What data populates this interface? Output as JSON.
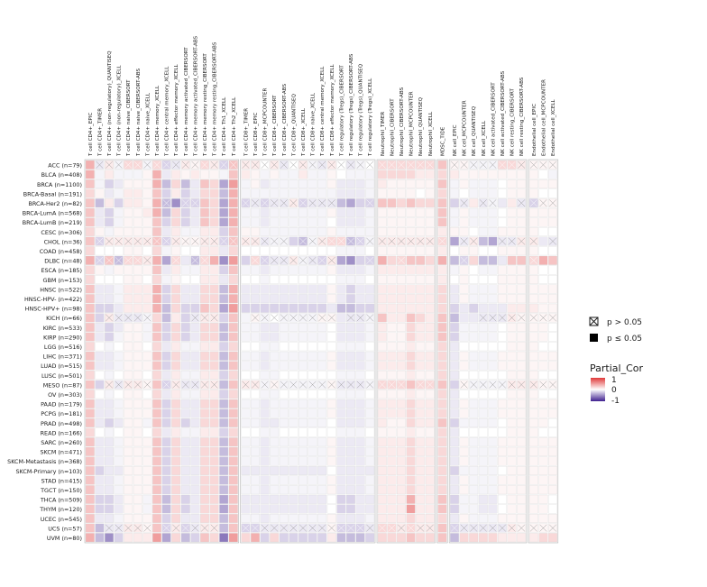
{
  "chart_data": {
    "type": "heatmap",
    "title": "",
    "legend_title": "Partial_Cor",
    "color_scale": {
      "min": -1,
      "max": 1,
      "low_color": "#3f1f8f",
      "mid_color": "#ffffff",
      "high_color": "#e03a3a",
      "ticks": [
        "1",
        "0",
        "-1"
      ]
    },
    "significance_legend": [
      {
        "symbol": "crossed-box",
        "label": "p > 0.05"
      },
      {
        "symbol": "filled-box",
        "label": "p ≤ 0.05"
      }
    ],
    "column_groups": [
      {
        "name": "T cell CD4+",
        "columns": [
          "T cell CD4+_EPIC",
          "T cell CD4+_TIMER",
          "T cell CD4+ (non-regulatory)_QUANTISEQ",
          "T cell CD4+ (non-regulatory)_XCELL",
          "T cell CD4+ naive_CIBERSORT",
          "T cell CD4+ naive_CIBERSORT-ABS",
          "T cell CD4+ naive_XCELL",
          "T cell CD4+ memory_XCELL",
          "T cell CD4+ central memory_XCELL",
          "T cell CD4+ effector memory_XCELL",
          "T cell CD4+ memory activated_CIBERSORT",
          "T cell CD4+ memory activated_CIBERSORT-ABS",
          "T cell CD4+ memory resting_CIBERSORT",
          "T cell CD4+ memory resting_CIBERSORT-ABS",
          "T cell CD4+ Th1_XCELL",
          "T cell CD4+ Th2_XCELL"
        ]
      },
      {
        "name": "T cell CD8+",
        "columns": [
          "T cell CD8+_TIMER",
          "T cell CD8+_EPIC",
          "T cell CD8+_MCPCOUNTER",
          "T cell CD8+_CIBERSORT",
          "T cell CD8+_CIBERSORT-ABS",
          "T cell CD8+_QUANTISEQ",
          "T cell CD8+_XCELL",
          "T cell CD8+ naive_XCELL",
          "T cell CD8+ central memory_XCELL",
          "T cell CD8+ effector memory_XCELL",
          "T cell regulatory (Tregs)_CIBERSORT",
          "T cell regulatory (Tregs)_CIBERSORT-ABS",
          "T cell regulatory (Tregs)_QUANTISEQ",
          "T cell regulatory (Tregs)_XCELL"
        ]
      },
      {
        "name": "Neutrophil",
        "columns": [
          "Neutrophil_TIMER",
          "Neutrophil_CIBERSORT",
          "Neutrophil_CIBERSORT-ABS",
          "Neutrophil_MCPCOUNTER",
          "Neutrophil_QUANTISEQ",
          "Neutrophil_XCELL"
        ]
      },
      {
        "name": "MDSC",
        "columns": [
          "MDSC_TIDE"
        ]
      },
      {
        "name": "NK cell",
        "columns": [
          "NK cell_EPIC",
          "NK cell_MCPCOUNTER",
          "NK cell_QUANTISEQ",
          "NK cell_XCELL",
          "NK cell activated_CIBERSORT",
          "NK cell activated_CIBERSORT-ABS",
          "NK cell resting_CIBERSORT",
          "NK cell resting_CIBERSORT-ABS"
        ]
      },
      {
        "name": "Endothelial cell",
        "columns": [
          "Endothelial cell_EPIC",
          "Endothelial cell_MCPCOUNTER",
          "Endothelial cell_XCELL"
        ]
      }
    ],
    "rows": [
      "ACC (n=79)",
      "BLCA (n=408)",
      "BRCA (n=1100)",
      "BRCA-Basal (n=191)",
      "BRCA-Her2 (n=82)",
      "BRCA-LumA (n=568)",
      "BRCA-LumB (n=219)",
      "CESC (n=306)",
      "CHOL (n=36)",
      "COAD (n=458)",
      "DLBC (n=48)",
      "ESCA (n=185)",
      "GBM (n=153)",
      "HNSC (n=522)",
      "HNSC-HPV- (n=422)",
      "HNSC-HPV+ (n=98)",
      "KICH (n=66)",
      "KIRC (n=533)",
      "KIRP (n=290)",
      "LGG (n=516)",
      "LIHC (n=371)",
      "LUAD (n=515)",
      "LUSC (n=501)",
      "MESO (n=87)",
      "OV (n=303)",
      "PAAD (n=179)",
      "PCPG (n=181)",
      "PRAD (n=498)",
      "READ (n=166)",
      "SARC (n=260)",
      "SKCM (n=471)",
      "SKCM-Metastasis (n=368)",
      "SKCM-Primary (n=103)",
      "STAD (n=415)",
      "TGCT (n=150)",
      "THCA (n=509)",
      "THYM (n=120)",
      "UCEC (n=545)",
      "UCS (n=57)",
      "UVM (n=80)"
    ],
    "cells": [
      "+0.40 -0.10x +0.10x -0.05x +0.20x +0.20x -0.05x +0.20x -0.20x -0.10x +0.10x +0.05x +0.20x +0.10x -0.20x +0.30x +0.10x +0.10x 0.00x +0.10x -0.10x 0.00x +0.10x -0.05x -0.10x +0.10x 0.00x -0.10x -0.05x 0.00x +0.20x +0.20x +0.20x +0.20x +0.20x +0.20x +0.30 +0.05x +0.05x -0.05x -0.05x -0.05x +0.20x +0.20x +0.10x +0.05x +0.05x +0.05x +0.30 -0.10x",
      "+0.40 -0.05 +0.10 -0.05 -0.05 -0.05 +0.05 +0.40 -0.10 +0.10 +0.05 +0.10 +0.05 +0.05 -0.05 +0.30 +0.10 +0.05 -0.05 +0.05 -0.05 -0.05 +0.10 -0.05 -0.05 +0.05 0.00 -0.05 -0.05 -0.05 +0.20 +0.20 +0.20 +0.20 +0.10 +0.10 +0.20 +0.10 +0.05 +0.05 +0.05 +0.05 +0.05 +0.05 +0.05 +0.05 0.00 -0.05 +0.05 -0.05",
      "+0.30 -0.05 -0.20 -0.10 +0.05 +0.05 +0.05 +0.40 -0.30 +0.20 -0.30 -0.10 +0.30 +0.20 -0.40 +0.50 -0.05 +0.05 -0.10 -0.05 -0.05 -0.05 -0.05 -0.05 -0.05 +0.05 -0.10 -0.10 -0.10 -0.05 +0.10 +0.05 +0.05 +0.05 +0.05 +0.05 +0.30 -0.05 +0.05 -0.05 -0.05 -0.05 0.00 +0.05 +0.05 +0.05 +0.05 +0.05 +0.05 -0.20",
      "+0.20 +0.05 -0.10 -0.05 +0.10 +0.10 +0.05 +0.30 -0.20 +0.10 -0.20 -0.10 +0.20 +0.20 -0.30 +0.40 -0.05 -0.05 -0.05 -0.05 -0.05 -0.05 -0.05 -0.05 -0.05 -0.05 -0.10 -0.10 -0.10 -0.05 +0.05 +0.05 +0.05 +0.05 0.00 +0.05 +0.20 -0.05 0.00 -0.05 -0.05 -0.05 0.00 +0.05 +0.05 +0.05 0.00 0.00 +0.05 -0.10",
      "+0.30 -0.30 +0.10 -0.20 +0.10 +0.10 +0.05 +0.40 -0.30x -0.50 -0.20x -0.20x +0.30 +0.20 -0.40 +0.40 -0.20x -0.10x -0.20x -0.10x -0.10x +0.10x -0.20x -0.10x -0.10x -0.10x -0.30 -0.40 -0.20 -0.20x +0.30 +0.30 +0.20 +0.30 +0.20 +0.20 +0.30 -0.20 -0.10x +0.10 -0.10x -0.05x -0.10 +0.10 -0.10x -0.20x +0.05x +0.05x +0.10x -0.20",
      "+0.30 -0.10 -0.20 -0.05 +0.05 +0.05 +0.10 +0.40 -0.30 +0.20 -0.20 -0.10 +0.30 +0.20 -0.40 +0.40 -0.05 -0.05 -0.10 -0.05 -0.05 -0.05 -0.05 -0.05 -0.05 +0.05 -0.10 -0.10 -0.10 -0.05 +0.05 +0.05 +0.05 +0.05 +0.05 +0.05 +0.30 -0.05 +0.05 -0.05 -0.05 -0.05 0.00 +0.05 +0.05 +0.05 +0.05 +0.05 +0.05 -0.20",
      "+0.30 -0.10 -0.20 -0.05 +0.05 +0.05 +0.05 +0.30 -0.20 +0.20 -0.20 -0.10 +0.30 +0.20 -0.40 +0.40 -0.05 -0.05 -0.10 -0.05 -0.05 -0.05 -0.05 -0.05 -0.05 0.00 -0.10 -0.10 -0.10 -0.05 +0.05 +0.05 +0.05 +0.05 +0.05 +0.05 +0.30 -0.05 +0.05 -0.05 -0.05 -0.05 0.00 +0.05 +0.05 +0.05 +0.05 +0.05 +0.05 -0.10",
      "+0.20 +0.05 -0.05 +0.05 +0.05 +0.05 +0.05 +0.30 -0.10 +0.10 -0.05 -0.05 +0.10 +0.10 -0.20 +0.30 +0.05 +0.05 -0.05 -0.05 -0.05 -0.05 -0.05 -0.05 -0.05 +0.05 -0.05 -0.05 -0.05 -0.05 +0.05 +0.05 +0.05 +0.05 +0.05 +0.05 +0.10 +0.05 +0.05 0.00 -0.05 -0.05 +0.05 +0.05 +0.05 +0.05 0.00 0.00 +0.05 -0.05",
      "+0.30 -0.20x +0.10x +0.10x +0.10x +0.10x +0.10x +0.30x -0.20x +0.10x +0.05x +0.05x +0.10x +0.10x -0.20x +0.30x +0.10x +0.10x -0.10x -0.05x -0.05x -0.20 -0.30x -0.05x +0.10x +0.20x +0.20x -0.30x -0.20x -0.05x +0.10x +0.10x +0.10x +0.10x +0.10x +0.10x +0.20x -0.40 -0.10x +0.10x -0.30 -0.40 -0.10x -0.10x +0.10x +0.10x -0.10 -0.10x +0.10x -0.20x",
      "+0.20 0.00 0.00 0.00 +0.05 +0.05 0.00 +0.20 -0.05 +0.05 0.00 0.00 +0.10 +0.10 -0.10 +0.20 0.00 0.00 0.00 0.00 0.00 0.00 0.00 0.00 0.00 0.00 -0.05 -0.05 -0.05 0.00 +0.05 +0.05 +0.05 +0.05 +0.05 +0.05 +0.10 0.00 +0.05 +0.05 0.00 0.00 +0.05 +0.05 +0.05 +0.05 0.00 0.00 +0.05 0.00",
      "+0.40 -0.20x +0.30x -0.30x +0.20x +0.20x +0.10x +0.40 -0.40 +0.20x -0.10 -0.30x +0.20x +0.40 -0.50 +0.50 -0.20 +0.20x -0.20x -0.10x -0.10x +0.10x -0.05x -0.10x -0.20x +0.10x -0.40 -0.50 -0.20 -0.20x +0.40 +0.20 +0.20x +0.30 +0.30 +0.20 +0.40 -0.30 -0.20x +0.20 -0.30 -0.30 -0.10 +0.30 +0.30 +0.20x +0.40 +0.30 +0.30 -0.30",
      "+0.20 +0.05 -0.05 +0.05 +0.05 +0.05 +0.05 +0.30 -0.10 +0.10 -0.05 -0.05 +0.10 +0.10 -0.20 +0.30 -0.05 -0.05 -0.10 -0.05 -0.05 -0.05 -0.05 -0.05 -0.05 +0.05 -0.10 -0.10 -0.10 -0.05 +0.10 +0.10 +0.10 +0.10 +0.10 +0.10 +0.10 -0.05 +0.05 0.00 -0.05 -0.05 +0.05 +0.05 +0.05 +0.05 0.00 0.00 +0.05 -0.05",
      "+0.20 0.00 0.00 0.00 +0.05 +0.05 0.00 +0.20 -0.05 +0.05 0.00 0.00 +0.10 +0.10 -0.10 +0.20 0.00 0.00 -0.05 0.00 0.00 0.00 0.00 0.00 0.00 0.00 -0.05 -0.05 -0.05 0.00 +0.05 +0.05 +0.05 +0.05 +0.05 +0.05 +0.10 0.00 +0.05 0.00 0.00 0.00 +0.05 +0.05 +0.05 +0.05 0.00 0.00 +0.05 0.00",
      "+0.30 -0.10 -0.10 -0.05 +0.10 +0.10 +0.10 +0.40 -0.20 +0.20 -0.10 -0.10 +0.20 +0.20 -0.30 +0.40 -0.10 -0.10 -0.10 -0.10 -0.10 -0.10 -0.10 -0.10 -0.10 +0.05 -0.10 -0.20 -0.10 -0.10 +0.10 +0.10 +0.10 +0.10 +0.10 +0.10 +0.20 -0.10 +0.05 -0.05 -0.05 -0.05 +0.05 +0.05 +0.05 +0.05 +0.05 +0.05 +0.05 -0.10",
      "+0.30 -0.10 -0.10 -0.05 +0.10 +0.10 +0.10 +0.40 -0.20 +0.20 -0.10 -0.10 +0.20 +0.20 -0.30 +0.40 -0.10 -0.10 -0.10 -0.10 -0.10 -0.10 -0.10 -0.10 -0.10 +0.05 -0.10 -0.20 -0.10 -0.10 +0.10 +0.10 +0.10 +0.10 +0.10 +0.10 +0.20 -0.10 +0.05 -0.05 -0.05 -0.05 +0.05 +0.05 +0.05 +0.05 +0.05 +0.05 +0.05 -0.10",
      "+0.30 -0.20 -0.20 -0.10 +0.10 +0.10 +0.10 +0.40 -0.30 +0.20 -0.20 -0.20 +0.30 +0.20 -0.40 +0.50 -0.20 -0.20 -0.20 -0.20 -0.20 -0.20 -0.20 -0.20 -0.20 -0.10 -0.30 -0.30 -0.20 -0.20 +0.10 +0.10 +0.10 +0.10 +0.10 +0.10 +0.20 -0.20 -0.10 -0.20 -0.10 -0.10 -0.10 +0.10 +0.10 +0.10 +0.05 +0.05 +0.05 -0.20",
      "+0.30 -0.20 +0.10x -0.10x -0.10x -0.10x -0.05x +0.20 -0.30 +0.10 -0.20 -0.10x +0.10x +0.10x -0.20 +0.30 -0.05 +0.05x -0.05x 0.00x -0.05x -0.05x -0.05x -0.05x +0.05x +0.05x -0.10 -0.10x -0.10x -0.05x +0.30 +0.10 +0.10 +0.30 +0.20 +0.10 +0.30 -0.30 -0.10 -0.10 -0.10x -0.10x -0.10x +0.10x +0.05x +0.05x +0.05x +0.05x +0.10x -0.20",
      "+0.30 -0.10 -0.20 -0.10 +0.05 +0.05 -0.05 +0.30 -0.20 +0.20 -0.20 -0.10 +0.20 +0.20 -0.30 +0.30 -0.05 -0.05 -0.10 -0.10 -0.05 -0.05 -0.05 -0.05 -0.05 0.00 -0.10 -0.10 -0.10 -0.05 +0.10 +0.05 +0.05 +0.20 +0.10 +0.10 +0.30 -0.20 -0.05 -0.05 -0.05 -0.05 0.00 +0.05 +0.05 +0.05 +0.05 0.00 0.00 -0.10",
      "+0.30 -0.10 -0.20 -0.05 +0.05 +0.05 -0.05 +0.30 -0.20 +0.20 -0.20 -0.10 +0.20 +0.20 -0.30 +0.30 -0.05 -0.05 -0.10 -0.10 -0.05 -0.05 -0.05 -0.05 -0.05 0.00 -0.10 -0.10 -0.10 -0.05 +0.10 +0.05 +0.05 +0.20 +0.10 +0.10 +0.30 -0.20 -0.05 -0.05 -0.05 -0.05 0.00 +0.05 +0.05 +0.05 +0.05 0.00 0.00 -0.10",
      "+0.20 0.00 -0.05 0.00 +0.05 +0.05 0.00 +0.20 -0.10 +0.10 -0.05 -0.05 +0.10 +0.10 -0.20 +0.20 0.00 0.00 -0.05 -0.05 0.00 0.00 0.00 0.00 0.00 0.00 -0.05 -0.05 -0.05 0.00 +0.05 +0.05 +0.05 +0.10 +0.05 +0.05 +0.20 -0.10 0.00 0.00 0.00 0.00 0.00 +0.05 +0.05 +0.05 0.00 0.00 0.00 -0.05",
      "+0.30 -0.10 -0.10 -0.05 +0.05 +0.05 +0.05 +0.30 -0.20 +0.20 -0.10 -0.10 +0.20 +0.20 -0.30 +0.30 -0.05 -0.05 -0.10 -0.05 -0.05 -0.05 -0.05 -0.05 -0.05 +0.05 -0.10 -0.10 -0.10 -0.05 +0.10 +0.10 +0.10 +0.20 +0.10 +0.10 +0.20 -0.10 +0.05 -0.05 -0.05 -0.05 +0.05 +0.05 +0.05 +0.05 +0.05 +0.05 +0.05 -0.10",
      "+0.30 -0.10 -0.10 -0.05 +0.05 +0.05 +0.05 +0.30 -0.20 +0.20 -0.10 -0.10 +0.20 +0.20 -0.30 +0.30 -0.05 -0.05 -0.10 -0.05 -0.05 -0.05 -0.05 -0.05 -0.05 +0.05 -0.10 -0.10 -0.10 -0.05 +0.10 +0.10 +0.10 +0.20 +0.10 +0.10 +0.20 -0.10 +0.05 -0.05 -0.05 -0.05 +0.05 +0.05 +0.05 +0.05 +0.05 +0.05 +0.05 -0.10",
      "+0.20 0.00 -0.05 0.00 +0.05 +0.05 0.00 +0.20 -0.10 +0.10 -0.05 -0.05 +0.10 +0.10 -0.20 +0.20 0.00 0.00 -0.05 -0.05 0.00 0.00 0.00 0.00 0.00 0.00 -0.05 -0.05 -0.05 0.00 +0.05 +0.05 +0.05 +0.10 +0.05 +0.05 +0.20 -0.10 0.00 0.00 0.00 0.00 0.00 +0.05 +0.05 +0.05 0.00 0.00 0.00 -0.05",
      "+0.30 -0.20 +0.10x -0.10x +0.10x +0.10x +0.05x +0.30 -0.20x +0.10x -0.10x -0.10x +0.10x +0.10x -0.30 +0.30 +0.10x +0.10x -0.05x +0.05x -0.05x -0.05x -0.05x -0.05x -0.05x +0.05x -0.10x -0.10x -0.10x -0.05x +0.20x +0.20x +0.20x +0.30 +0.20x +0.20x +0.30 -0.20 +0.05x -0.05x -0.05x -0.05x -0.05x +0.10x +0.10x +0.10x +0.05x +0.05x +0.10x -0.20",
      "+0.20 0.00 -0.05 0.00 +0.05 +0.05 0.00 +0.20 -0.10 +0.10 -0.05 -0.05 +0.10 +0.10 -0.20 +0.20 0.00 0.00 -0.05 -0.05 0.00 0.00 0.00 0.00 0.00 0.00 -0.05 -0.05 -0.05 0.00 +0.05 +0.05 +0.05 +0.10 +0.05 +0.05 +0.20 -0.10 0.00 0.00 0.00 0.00 0.00 +0.05 +0.05 +0.05 0.00 0.00 0.00 -0.05",
      "+0.30 -0.10 -0.10 -0.05 +0.05 +0.05 +0.05 +0.30 -0.20 +0.20 -0.10 -0.10 +0.20 +0.20 -0.30 +0.30 -0.05 -0.05 -0.10 -0.05 -0.05 -0.05 -0.05 -0.05 -0.05 +0.05 -0.10 -0.10 -0.10 -0.05 +0.10 +0.10 +0.10 +0.20 +0.10 +0.10 +0.20 -0.10 +0.05 -0.05 -0.05 -0.05 +0.05 +0.05 +0.05 +0.05 +0.05 +0.05 +0.05 -0.10",
      "+0.30 -0.10 -0.10 -0.05 +0.05 +0.05 +0.05 +0.30 -0.20 +0.20 -0.10 -0.10 +0.20 +0.20 -0.30 +0.30 -0.05 -0.05 -0.10 -0.05 -0.05 -0.05 -0.05 -0.05 -0.05 +0.05 -0.10 -0.10 -0.10 -0.05 +0.10 +0.10 +0.10 +0.20 +0.10 +0.10 +0.20 -0.10 +0.05 -0.05 -0.05 -0.05 +0.05 +0.05 +0.05 +0.05 +0.05 +0.05 +0.05 -0.10",
      "+0.30 -0.10 -0.20 -0.10 +0.05 +0.05 -0.05 +0.30 -0.20 +0.20 -0.20 -0.10 +0.20 +0.20 -0.30 +0.30 -0.05 -0.05 -0.10 -0.10 -0.05 -0.05 -0.05 -0.05 -0.05 0.00 -0.10 -0.10 -0.10 -0.05 +0.10 +0.05 +0.05 +0.20 +0.10 +0.10 +0.30 -0.20 -0.05 -0.05 -0.05 -0.05 0.00 +0.05 +0.05 +0.05 +0.05 0.00 0.00 -0.10",
      "+0.20 0.00 -0.05 0.00 +0.05 +0.05 0.00 +0.20 -0.10 +0.10 -0.05 -0.05 +0.10 +0.10 -0.20 +0.20 0.00 0.00 -0.05 -0.05 0.00 0.00 0.00 0.00 0.00 0.00 -0.05 -0.05 -0.05 0.00 +0.05 +0.05 +0.05 +0.10 +0.05 +0.05 +0.20 -0.10 0.00 0.00 0.00 0.00 0.00 +0.05 +0.05 +0.05 0.00 0.00 0.00 -0.05",
      "+0.30 -0.10 -0.10 -0.05 +0.05 +0.05 +0.05 +0.30 -0.20 +0.20 -0.10 -0.10 +0.20 +0.20 -0.30 +0.30 -0.05 -0.05 -0.10 -0.05 -0.05 -0.05 -0.05 -0.05 -0.05 +0.05 -0.10 -0.10 -0.10 -0.05 +0.10 +0.10 +0.10 +0.20 +0.10 +0.10 +0.20 -0.10 +0.05 -0.05 -0.05 -0.05 +0.05 +0.05 +0.05 +0.05 +0.05 +0.05 +0.05 -0.10",
      "+0.30 -0.10 -0.10 -0.05 +0.05 +0.05 +0.05 +0.30 -0.20 +0.20 -0.10 -0.10 +0.20 +0.20 -0.30 +0.30 -0.05 -0.05 -0.10 -0.05 -0.05 -0.05 -0.05 -0.05 -0.05 +0.05 -0.10 -0.10 -0.10 -0.05 +0.10 +0.10 +0.10 +0.20 +0.10 +0.10 +0.20 -0.10 +0.05 -0.05 -0.05 -0.05 +0.05 +0.05 +0.05 +0.05 +0.05 +0.05 +0.05 -0.10",
      "+0.30 -0.10 -0.10 -0.05 +0.05 +0.05 +0.05 +0.30 -0.20 +0.20 -0.10 -0.10 +0.20 +0.20 -0.30 +0.30 -0.05 -0.05 -0.10 -0.05 -0.05 -0.05 -0.05 -0.05 -0.05 +0.05 -0.10 -0.10 -0.10 -0.05 +0.10 +0.10 +0.10 +0.20 +0.10 +0.10 +0.20 -0.10 +0.05 -0.05 -0.05 -0.05 +0.05 +0.05 +0.05 +0.05 +0.05 +0.05 +0.05 -0.10",
      "+0.30 -0.20 -0.10 -0.10 +0.05 +0.05 +0.05 +0.30 -0.20 +0.20 -0.10 -0.10 +0.20 +0.20 -0.30 +0.30 -0.10 -0.10 -0.10 -0.10 -0.10 -0.10 -0.10 -0.10 -0.10 0.00 -0.10 -0.10 -0.10 -0.10 +0.10 +0.10 +0.10 +0.20 +0.10 +0.10 +0.20 -0.20 -0.05 -0.05 -0.05 -0.05 0.00 +0.05 +0.05 +0.05 +0.05 +0.05 +0.05 -0.20",
      "+0.30 -0.10 -0.10 -0.05 +0.05 +0.05 +0.05 +0.30 -0.20 +0.20 -0.10 -0.10 +0.20 +0.20 -0.30 +0.30 -0.05 -0.05 -0.10 -0.05 -0.05 -0.05 -0.05 -0.05 -0.05 +0.05 -0.10 -0.10 -0.10 -0.05 +0.10 +0.10 +0.10 +0.20 +0.10 +0.10 +0.20 -0.10 +0.05 -0.05 -0.05 -0.05 +0.05 +0.05 +0.05 +0.05 +0.05 +0.05 +0.05 -0.10",
      "+0.30 -0.10 -0.10 -0.05 +0.05 +0.05 +0.05 +0.30 -0.20 +0.20 -0.10 -0.10 +0.20 +0.20 -0.30 +0.30 -0.05 -0.05 -0.10 -0.05 -0.05 -0.05 -0.05 -0.05 -0.05 +0.05 -0.10 -0.10 -0.10 -0.05 +0.10 +0.10 +0.10 +0.20 +0.10 +0.10 +0.20 -0.10 +0.05 -0.05 -0.05 -0.05 +0.05 +0.05 +0.05 +0.05 +0.05 +0.05 +0.05 -0.10",
      "+0.30 -0.20 -0.20 -0.10 +0.05 +0.05 -0.05 +0.30 -0.30 +0.20 -0.20 -0.10 +0.20 +0.20 -0.40 +0.30 -0.10 -0.10 -0.10 -0.10 -0.10 -0.10 -0.10 -0.10 -0.10 0.00 -0.20 -0.20 -0.10 -0.10 +0.10 +0.10 +0.10 +0.40 +0.10 +0.10 +0.30 -0.20 -0.05 -0.05 -0.10 -0.10 0.00 +0.05 +0.05 +0.05 +0.05 0.00 0.00 -0.20",
      "+0.30 -0.20 -0.20 -0.10 +0.05 +0.05 -0.05 +0.30 -0.30 +0.20 -0.20 -0.10 +0.20 +0.20 -0.40 +0.30 -0.10 -0.10 -0.10 -0.10 -0.10 -0.10 -0.10 -0.10 -0.10 0.00 -0.20 -0.20 -0.10 -0.10 +0.10 +0.10 +0.10 +0.50 +0.10 +0.10 +0.30 -0.20 -0.05 -0.05 -0.10 -0.10 0.00 +0.05 +0.05 +0.05 +0.05 0.00 0.00 -0.20",
      "+0.30 -0.10 -0.10 -0.05 +0.05 +0.05 +0.05 +0.30 -0.20 +0.20 -0.10 -0.10 +0.20 +0.20 -0.30 +0.30 -0.05 -0.05 -0.10 -0.05 -0.05 -0.05 -0.05 -0.05 -0.05 +0.05 -0.10 -0.10 -0.10 -0.05 +0.10 +0.10 +0.10 +0.20 +0.10 +0.10 +0.20 -0.10 +0.05 -0.05 -0.05 -0.05 +0.05 +0.05 +0.05 +0.05 +0.05 +0.05 +0.05 -0.20",
      "+0.30 -0.30 -0.10x -0.10x +0.10x +0.10x +0.05x +0.30 -0.20x +0.10x -0.20x -0.10x +0.10x +0.10x -0.30 +0.30 -0.20x -0.20x -0.10x -0.10x -0.10x -0.10x -0.10x -0.10x -0.10x +0.05x -0.20x -0.20x -0.20x -0.10x +0.20x +0.20x +0.10x +0.20x +0.10x +0.10x +0.30 -0.20x -0.10x -0.10x -0.10x -0.10x -0.10x +0.10x +0.05x +0.05x +0.05x +0.05x +0.10x -0.30",
      "+0.40 -0.30 -0.50 -0.20 +0.10 +0.10 +0.10 +0.50 -0.40 +0.20 -0.30 -0.20 +0.30 +0.20 -0.60 +0.50 +0.20 +0.40 -0.20 +0.20 -0.20 -0.20 -0.20 -0.20 -0.20 +0.10 -0.30 -0.30 -0.30 -0.20 +0.20 +0.20 +0.20 +0.30 +0.20 +0.20 +0.30 -0.30 +0.20 +0.20 +0.20 +0.20 +0.10 +0.10 +0.10 +0.10 +0.20 +0.20 +0.20 -0.50"
    ]
  }
}
